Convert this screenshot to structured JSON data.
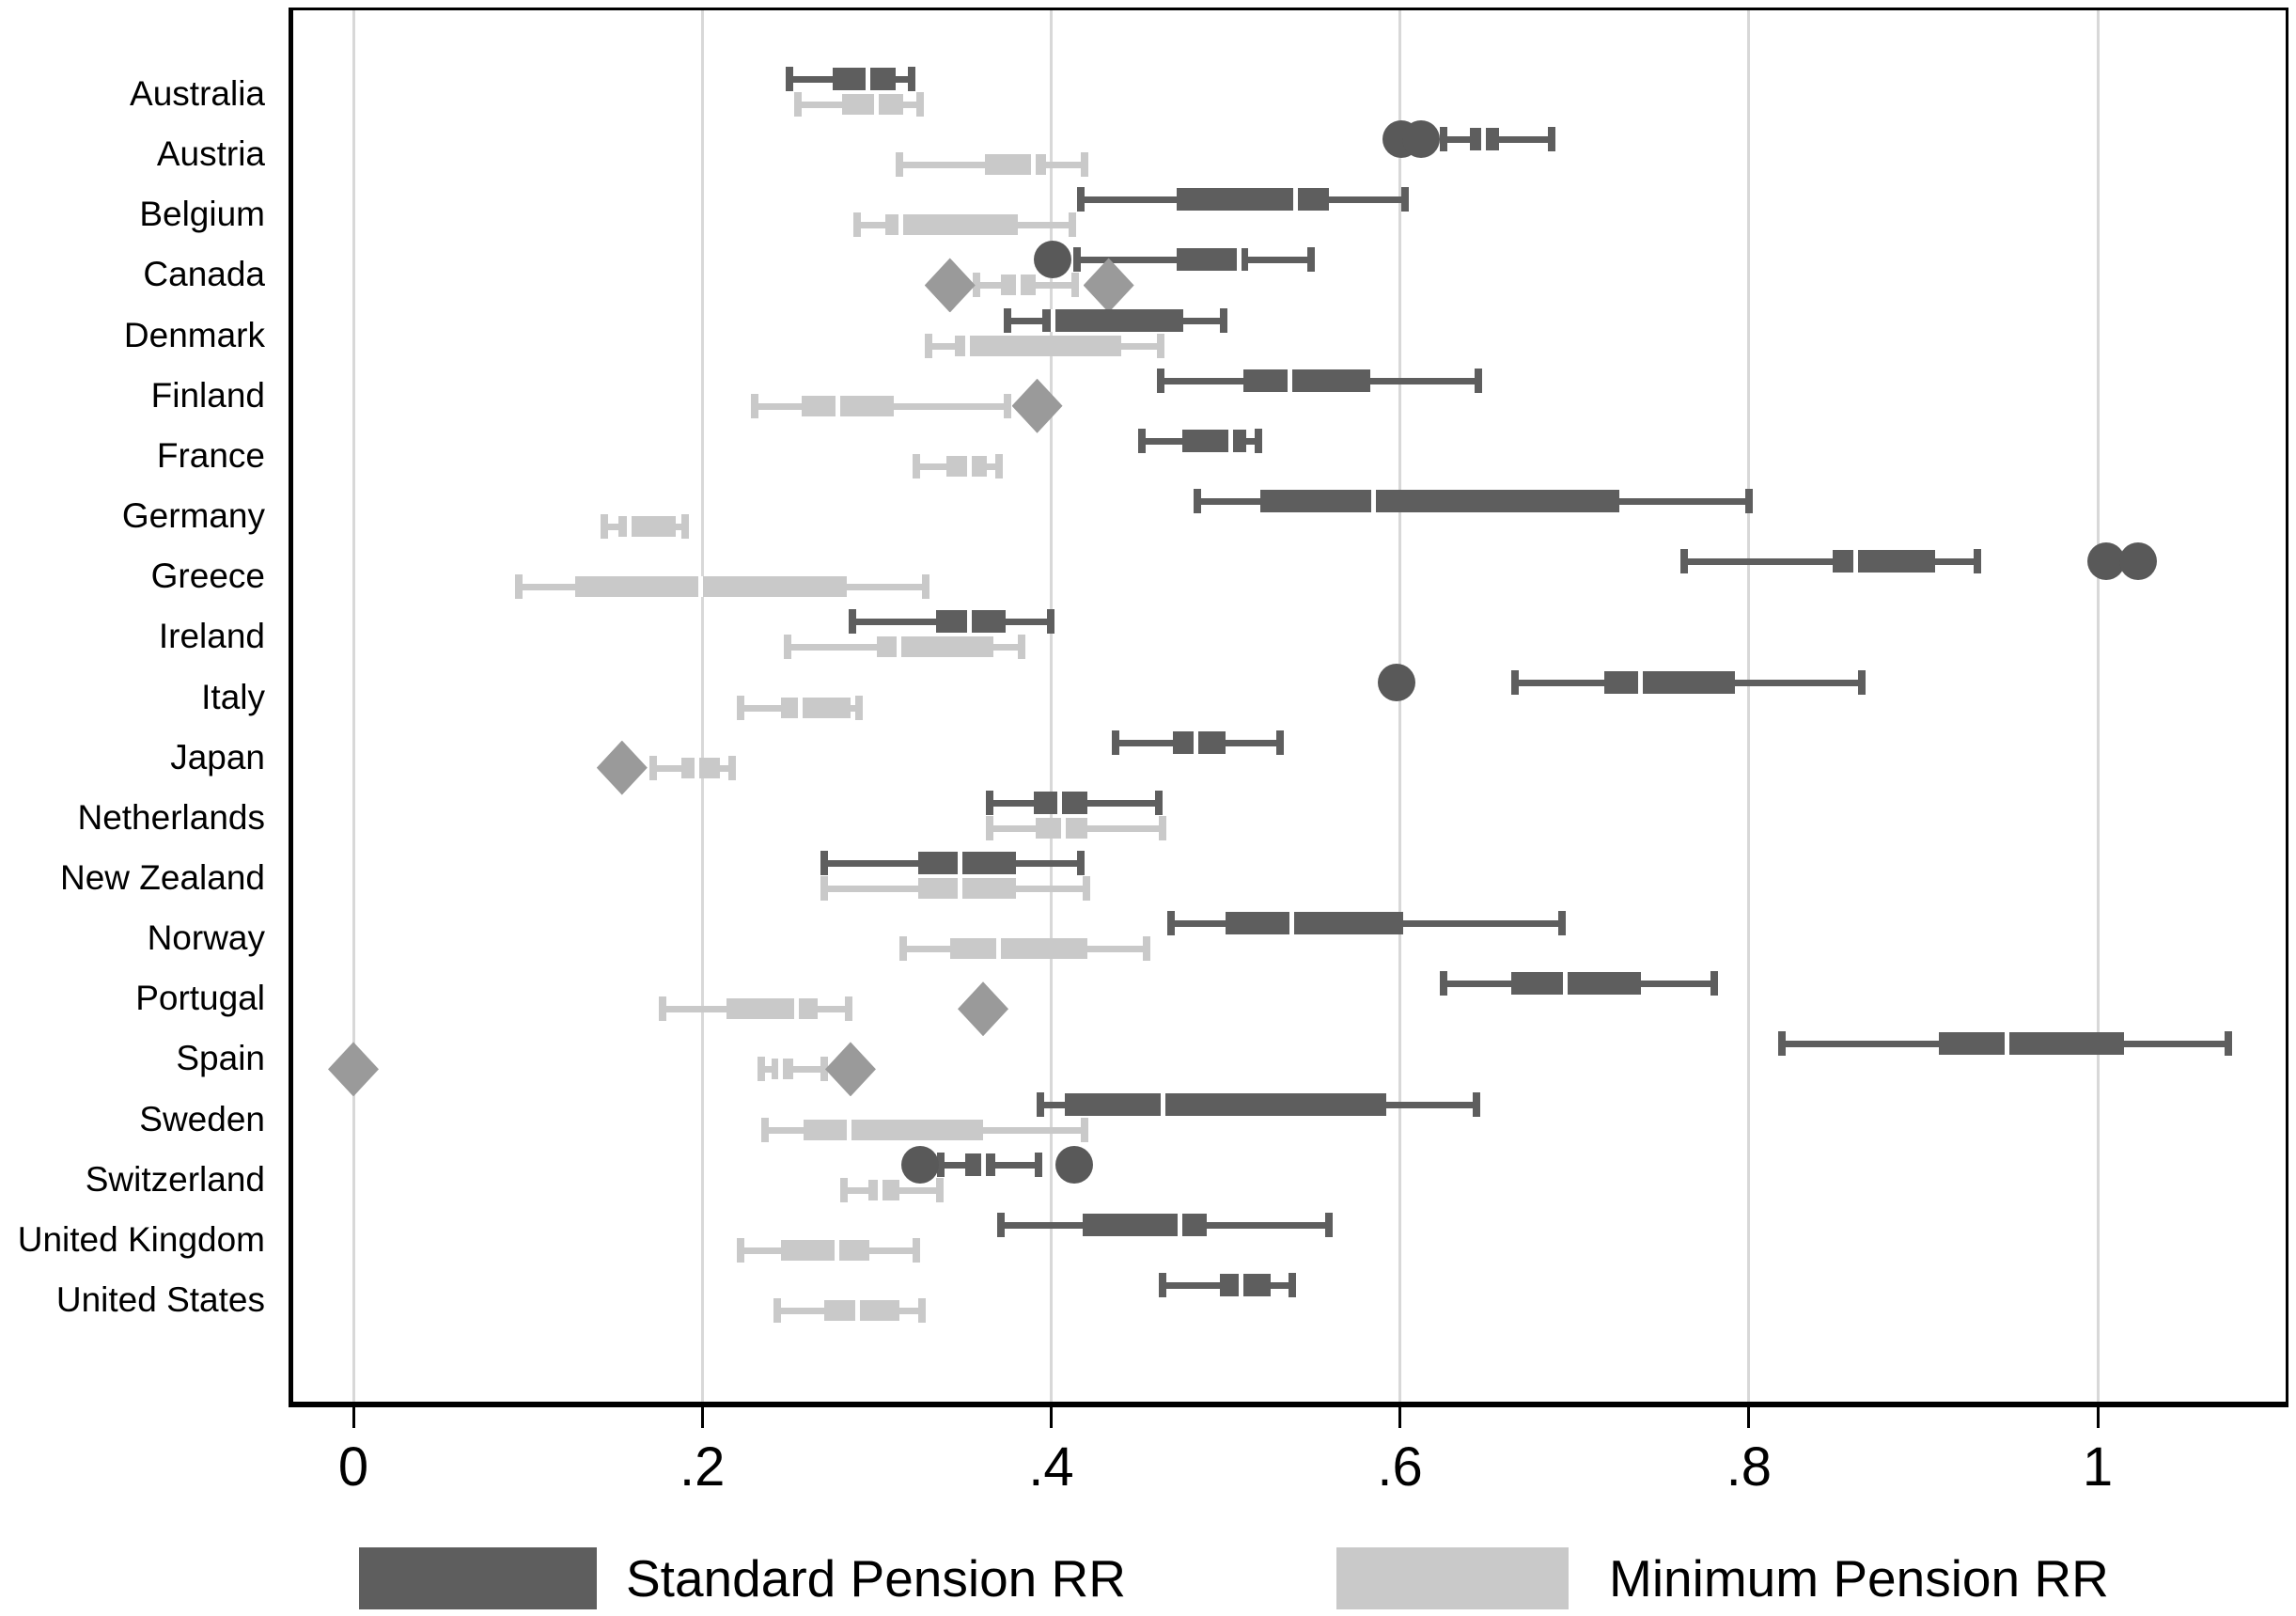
{
  "chart_data": {
    "type": "box",
    "orientation": "horizontal",
    "title": "",
    "xlabel": "",
    "ylabel": "",
    "grid": "vertical-on",
    "legend_position": "bottom",
    "x_axis": {
      "tick_values": [
        0,
        0.2,
        0.4,
        0.6,
        0.8,
        1.0
      ],
      "tick_labels": [
        "0",
        ".2",
        ".4",
        ".6",
        ".8",
        "1"
      ],
      "range": [
        -0.037,
        1.113
      ]
    },
    "colors": {
      "standard": "#5e5e5e",
      "minimum": "#c9c9c9",
      "outlier_circle": "#595959",
      "outlier_diamond": "#9a9a9a",
      "gridline": "#d8d8d8",
      "median_line": "#ffffff"
    },
    "legend": [
      {
        "name": "Standard Pension RR",
        "color": "#5e5e5e"
      },
      {
        "name": "Minimum Pension RR",
        "color": "#c9c9c9"
      }
    ],
    "countries": [
      {
        "name": "Australia",
        "standard": {
          "whisker_low": 0.25,
          "q1": 0.275,
          "median": 0.295,
          "q3": 0.311,
          "whisker_high": 0.32,
          "outliers": []
        },
        "minimum": {
          "whisker_low": 0.255,
          "q1": 0.28,
          "median": 0.3,
          "q3": 0.315,
          "whisker_high": 0.325,
          "outliers": []
        }
      },
      {
        "name": "Austria",
        "standard": {
          "whisker_low": 0.625,
          "q1": 0.64,
          "median": 0.648,
          "q3": 0.657,
          "whisker_high": 0.687,
          "outliers": [
            0.601,
            0.612
          ]
        },
        "minimum": {
          "whisker_low": 0.313,
          "q1": 0.362,
          "median": 0.39,
          "q3": 0.397,
          "whisker_high": 0.419,
          "outliers": []
        }
      },
      {
        "name": "Belgium",
        "standard": {
          "whisker_low": 0.417,
          "q1": 0.472,
          "median": 0.54,
          "q3": 0.559,
          "whisker_high": 0.603,
          "outliers": []
        },
        "minimum": {
          "whisker_low": 0.289,
          "q1": 0.305,
          "median": 0.314,
          "q3": 0.381,
          "whisker_high": 0.412,
          "outliers": []
        }
      },
      {
        "name": "Canada",
        "standard": {
          "whisker_low": 0.415,
          "q1": 0.472,
          "median": 0.508,
          "q3": 0.513,
          "whisker_high": 0.549,
          "outliers": [
            0.401
          ]
        },
        "minimum": {
          "whisker_low": 0.357,
          "q1": 0.371,
          "median": 0.381,
          "q3": 0.391,
          "whisker_high": 0.414,
          "outliers": [
            0.342,
            0.433
          ]
        }
      },
      {
        "name": "Denmark",
        "standard": {
          "whisker_low": 0.375,
          "q1": 0.395,
          "median": 0.401,
          "q3": 0.476,
          "whisker_high": 0.499,
          "outliers": []
        },
        "minimum": {
          "whisker_low": 0.33,
          "q1": 0.345,
          "median": 0.352,
          "q3": 0.44,
          "whisker_high": 0.463,
          "outliers": []
        }
      },
      {
        "name": "Finland",
        "standard": {
          "whisker_low": 0.463,
          "q1": 0.51,
          "median": 0.537,
          "q3": 0.583,
          "whisker_high": 0.645,
          "outliers": []
        },
        "minimum": {
          "whisker_low": 0.23,
          "q1": 0.257,
          "median": 0.278,
          "q3": 0.31,
          "whisker_high": 0.375,
          "outliers": [
            0.392
          ]
        }
      },
      {
        "name": "France",
        "standard": {
          "whisker_low": 0.452,
          "q1": 0.475,
          "median": 0.503,
          "q3": 0.512,
          "whisker_high": 0.519,
          "outliers": []
        },
        "minimum": {
          "whisker_low": 0.323,
          "q1": 0.34,
          "median": 0.353,
          "q3": 0.363,
          "whisker_high": 0.37,
          "outliers": []
        }
      },
      {
        "name": "Germany",
        "standard": {
          "whisker_low": 0.484,
          "q1": 0.52,
          "median": 0.585,
          "q3": 0.726,
          "whisker_high": 0.8,
          "outliers": []
        },
        "minimum": {
          "whisker_low": 0.144,
          "q1": 0.152,
          "median": 0.158,
          "q3": 0.185,
          "whisker_high": 0.19,
          "outliers": []
        }
      },
      {
        "name": "Greece",
        "standard": {
          "whisker_low": 0.763,
          "q1": 0.848,
          "median": 0.861,
          "q3": 0.907,
          "whisker_high": 0.931,
          "outliers": [
            1.005,
            1.023
          ]
        },
        "minimum": {
          "whisker_low": 0.095,
          "q1": 0.127,
          "median": 0.199,
          "q3": 0.283,
          "whisker_high": 0.328,
          "outliers": []
        }
      },
      {
        "name": "Ireland",
        "standard": {
          "whisker_low": 0.286,
          "q1": 0.334,
          "median": 0.353,
          "q3": 0.374,
          "whisker_high": 0.4,
          "outliers": []
        },
        "minimum": {
          "whisker_low": 0.249,
          "q1": 0.3,
          "median": 0.313,
          "q3": 0.367,
          "whisker_high": 0.383,
          "outliers": []
        }
      },
      {
        "name": "Italy",
        "standard": {
          "whisker_low": 0.666,
          "q1": 0.717,
          "median": 0.738,
          "q3": 0.792,
          "whisker_high": 0.865,
          "outliers": [
            0.598
          ]
        },
        "minimum": {
          "whisker_low": 0.222,
          "q1": 0.245,
          "median": 0.256,
          "q3": 0.285,
          "whisker_high": 0.29,
          "outliers": []
        }
      },
      {
        "name": "Japan",
        "standard": {
          "whisker_low": 0.437,
          "q1": 0.47,
          "median": 0.483,
          "q3": 0.5,
          "whisker_high": 0.531,
          "outliers": []
        },
        "minimum": {
          "whisker_low": 0.172,
          "q1": 0.188,
          "median": 0.197,
          "q3": 0.21,
          "whisker_high": 0.217,
          "outliers": [
            0.154
          ]
        }
      },
      {
        "name": "Netherlands",
        "standard": {
          "whisker_low": 0.365,
          "q1": 0.39,
          "median": 0.405,
          "q3": 0.421,
          "whisker_high": 0.462,
          "outliers": []
        },
        "minimum": {
          "whisker_low": 0.365,
          "q1": 0.391,
          "median": 0.407,
          "q3": 0.421,
          "whisker_high": 0.464,
          "outliers": []
        }
      },
      {
        "name": "New Zealand",
        "standard": {
          "whisker_low": 0.27,
          "q1": 0.324,
          "median": 0.348,
          "q3": 0.38,
          "whisker_high": 0.417,
          "outliers": []
        },
        "minimum": {
          "whisker_low": 0.27,
          "q1": 0.324,
          "median": 0.348,
          "q3": 0.38,
          "whisker_high": 0.42,
          "outliers": []
        }
      },
      {
        "name": "Norway",
        "standard": {
          "whisker_low": 0.469,
          "q1": 0.5,
          "median": 0.538,
          "q3": 0.602,
          "whisker_high": 0.693,
          "outliers": []
        },
        "minimum": {
          "whisker_low": 0.315,
          "q1": 0.342,
          "median": 0.37,
          "q3": 0.421,
          "whisker_high": 0.455,
          "outliers": []
        }
      },
      {
        "name": "Portugal",
        "standard": {
          "whisker_low": 0.625,
          "q1": 0.664,
          "median": 0.695,
          "q3": 0.738,
          "whisker_high": 0.78,
          "outliers": []
        },
        "minimum": {
          "whisker_low": 0.177,
          "q1": 0.214,
          "median": 0.254,
          "q3": 0.266,
          "whisker_high": 0.284,
          "outliers": [
            0.361
          ]
        }
      },
      {
        "name": "Spain",
        "standard": {
          "whisker_low": 0.819,
          "q1": 0.909,
          "median": 0.948,
          "q3": 1.015,
          "whisker_high": 1.075,
          "outliers": []
        },
        "minimum": {
          "whisker_low": 0.234,
          "q1": 0.24,
          "median": 0.245,
          "q3": 0.252,
          "whisker_high": 0.27,
          "outliers": [
            0.0,
            0.285
          ]
        }
      },
      {
        "name": "Sweden",
        "standard": {
          "whisker_low": 0.394,
          "q1": 0.408,
          "median": 0.464,
          "q3": 0.592,
          "whisker_high": 0.644,
          "outliers": []
        },
        "minimum": {
          "whisker_low": 0.236,
          "q1": 0.258,
          "median": 0.284,
          "q3": 0.361,
          "whisker_high": 0.419,
          "outliers": []
        }
      },
      {
        "name": "Switzerland",
        "standard": {
          "whisker_low": 0.337,
          "q1": 0.351,
          "median": 0.361,
          "q3": 0.368,
          "whisker_high": 0.393,
          "outliers": [
            0.325,
            0.413
          ]
        },
        "minimum": {
          "whisker_low": 0.281,
          "q1": 0.295,
          "median": 0.302,
          "q3": 0.313,
          "whisker_high": 0.336,
          "outliers": []
        }
      },
      {
        "name": "United Kingdom",
        "standard": {
          "whisker_low": 0.371,
          "q1": 0.418,
          "median": 0.474,
          "q3": 0.489,
          "whisker_high": 0.559,
          "outliers": []
        },
        "minimum": {
          "whisker_low": 0.222,
          "q1": 0.245,
          "median": 0.277,
          "q3": 0.296,
          "whisker_high": 0.323,
          "outliers": []
        }
      },
      {
        "name": "United States",
        "standard": {
          "whisker_low": 0.464,
          "q1": 0.497,
          "median": 0.509,
          "q3": 0.526,
          "whisker_high": 0.538,
          "outliers": []
        },
        "minimum": {
          "whisker_low": 0.243,
          "q1": 0.27,
          "median": 0.289,
          "q3": 0.313,
          "whisker_high": 0.326,
          "outliers": []
        }
      }
    ]
  }
}
